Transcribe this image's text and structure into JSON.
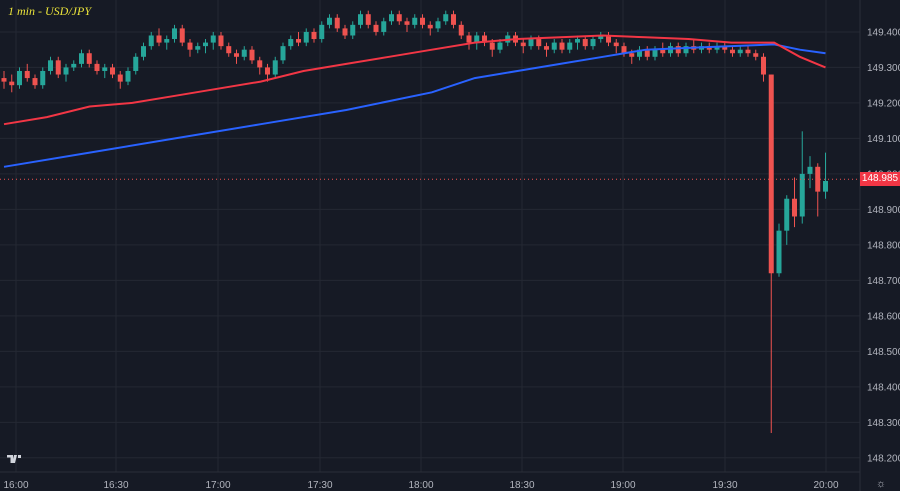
{
  "chart_data": {
    "type": "candlestick",
    "title": "1 min - USD/JPY",
    "y_ticks": [
      "149.400",
      "149.300",
      "149.200",
      "149.100",
      "149.000",
      "148.900",
      "148.800",
      "148.700",
      "148.600",
      "148.500",
      "148.400",
      "148.300",
      "148.200"
    ],
    "x_ticks": [
      "16:00",
      "16:30",
      "17:00",
      "17:30",
      "18:00",
      "18:30",
      "19:00",
      "19:30",
      "20:00"
    ],
    "ylim": [
      148.16,
      149.49
    ],
    "last_price": "148.985",
    "grid": true,
    "colors": {
      "up": "#26a69a",
      "down": "#ef5350",
      "ma_fast": "#f23645",
      "ma_slow": "#2962ff",
      "background": "#161a25",
      "grid": "#242833"
    },
    "ohlc": [
      [
        149.27,
        149.29,
        149.24,
        149.26
      ],
      [
        149.26,
        149.28,
        149.23,
        149.25
      ],
      [
        149.25,
        149.3,
        149.24,
        149.29
      ],
      [
        149.29,
        149.31,
        149.26,
        149.27
      ],
      [
        149.27,
        149.28,
        149.24,
        149.25
      ],
      [
        149.25,
        149.3,
        149.24,
        149.29
      ],
      [
        149.29,
        149.33,
        149.28,
        149.32
      ],
      [
        149.32,
        149.33,
        149.27,
        149.28
      ],
      [
        149.28,
        149.31,
        149.26,
        149.3
      ],
      [
        149.3,
        149.32,
        149.29,
        149.31
      ],
      [
        149.31,
        149.35,
        149.3,
        149.34
      ],
      [
        149.34,
        149.35,
        149.3,
        149.31
      ],
      [
        149.31,
        149.32,
        149.28,
        149.29
      ],
      [
        149.29,
        149.31,
        149.27,
        149.3
      ],
      [
        149.3,
        149.31,
        149.27,
        149.28
      ],
      [
        149.28,
        149.29,
        149.24,
        149.26
      ],
      [
        149.26,
        149.3,
        149.25,
        149.29
      ],
      [
        149.29,
        149.34,
        149.28,
        149.33
      ],
      [
        149.33,
        149.37,
        149.32,
        149.36
      ],
      [
        149.36,
        149.4,
        149.35,
        149.39
      ],
      [
        149.39,
        149.41,
        149.36,
        149.37
      ],
      [
        149.37,
        149.39,
        149.35,
        149.38
      ],
      [
        149.38,
        149.42,
        149.37,
        149.41
      ],
      [
        149.41,
        149.42,
        149.36,
        149.37
      ],
      [
        149.37,
        149.38,
        149.33,
        149.35
      ],
      [
        149.35,
        149.37,
        149.34,
        149.36
      ],
      [
        149.36,
        149.38,
        149.34,
        149.37
      ],
      [
        149.37,
        149.4,
        149.35,
        149.39
      ],
      [
        149.39,
        149.4,
        149.35,
        149.36
      ],
      [
        149.36,
        149.37,
        149.33,
        149.34
      ],
      [
        149.34,
        149.35,
        149.31,
        149.33
      ],
      [
        149.33,
        149.36,
        149.32,
        149.35
      ],
      [
        149.35,
        149.36,
        149.31,
        149.32
      ],
      [
        149.32,
        149.33,
        149.28,
        149.3
      ],
      [
        149.3,
        149.31,
        149.26,
        149.28
      ],
      [
        149.28,
        149.33,
        149.27,
        149.32
      ],
      [
        149.32,
        149.37,
        149.31,
        149.36
      ],
      [
        149.36,
        149.39,
        149.35,
        149.38
      ],
      [
        149.38,
        149.4,
        149.36,
        149.37
      ],
      [
        149.37,
        149.41,
        149.36,
        149.4
      ],
      [
        149.4,
        149.41,
        149.37,
        149.38
      ],
      [
        149.38,
        149.43,
        149.37,
        149.42
      ],
      [
        149.42,
        149.45,
        149.41,
        149.44
      ],
      [
        149.44,
        149.45,
        149.4,
        149.41
      ],
      [
        149.41,
        149.42,
        149.38,
        149.39
      ],
      [
        149.39,
        149.43,
        149.38,
        149.42
      ],
      [
        149.42,
        149.46,
        149.41,
        149.45
      ],
      [
        149.45,
        149.46,
        149.41,
        149.42
      ],
      [
        149.42,
        149.43,
        149.39,
        149.4
      ],
      [
        149.4,
        149.44,
        149.39,
        149.43
      ],
      [
        149.43,
        149.46,
        149.42,
        149.45
      ],
      [
        149.45,
        149.46,
        149.42,
        149.43
      ],
      [
        149.43,
        149.44,
        149.4,
        149.42
      ],
      [
        149.42,
        149.45,
        149.41,
        149.44
      ],
      [
        149.44,
        149.45,
        149.41,
        149.42
      ],
      [
        149.42,
        149.43,
        149.39,
        149.41
      ],
      [
        149.41,
        149.44,
        149.4,
        149.43
      ],
      [
        149.43,
        149.46,
        149.42,
        149.45
      ],
      [
        149.45,
        149.46,
        149.41,
        149.42
      ],
      [
        149.42,
        149.43,
        149.38,
        149.39
      ],
      [
        149.39,
        149.4,
        149.35,
        149.37
      ],
      [
        149.37,
        149.4,
        149.35,
        149.39
      ],
      [
        149.39,
        149.4,
        149.36,
        149.37
      ],
      [
        149.37,
        149.38,
        149.33,
        149.35
      ],
      [
        149.35,
        149.38,
        149.34,
        149.37
      ],
      [
        149.37,
        149.4,
        149.36,
        149.39
      ],
      [
        149.39,
        149.4,
        149.36,
        149.37
      ],
      [
        149.37,
        149.38,
        149.34,
        149.36
      ],
      [
        149.36,
        149.39,
        149.35,
        149.38
      ],
      [
        149.38,
        149.39,
        149.35,
        149.36
      ],
      [
        149.36,
        149.37,
        149.33,
        149.35
      ],
      [
        149.35,
        149.38,
        149.34,
        149.37
      ],
      [
        149.37,
        149.38,
        149.34,
        149.35
      ],
      [
        149.35,
        149.38,
        149.34,
        149.37
      ],
      [
        149.37,
        149.39,
        149.35,
        149.38
      ],
      [
        149.38,
        149.39,
        149.35,
        149.36
      ],
      [
        149.36,
        149.39,
        149.35,
        149.38
      ],
      [
        149.38,
        149.4,
        149.37,
        149.39
      ],
      [
        149.39,
        149.4,
        149.36,
        149.37
      ],
      [
        149.37,
        149.38,
        149.34,
        149.36
      ],
      [
        149.36,
        149.37,
        149.33,
        149.34
      ],
      [
        149.34,
        149.35,
        149.31,
        149.33
      ],
      [
        149.33,
        149.36,
        149.32,
        149.35
      ],
      [
        149.35,
        149.36,
        149.32,
        149.33
      ],
      [
        149.33,
        149.36,
        149.32,
        149.35
      ],
      [
        149.35,
        149.37,
        149.33,
        149.34
      ],
      [
        149.34,
        149.37,
        149.33,
        149.36
      ],
      [
        149.36,
        149.37,
        149.33,
        149.34
      ],
      [
        149.34,
        149.37,
        149.33,
        149.36
      ],
      [
        149.36,
        149.38,
        149.34,
        149.35
      ],
      [
        149.35,
        149.37,
        149.34,
        149.36
      ],
      [
        149.36,
        149.37,
        149.34,
        149.35
      ],
      [
        149.35,
        149.37,
        149.34,
        149.36
      ],
      [
        149.36,
        149.37,
        149.34,
        149.35
      ],
      [
        149.35,
        149.36,
        149.33,
        149.34
      ],
      [
        149.34,
        149.36,
        149.33,
        149.35
      ],
      [
        149.35,
        149.36,
        149.33,
        149.34
      ],
      [
        149.34,
        149.35,
        149.32,
        149.33
      ],
      [
        149.33,
        149.34,
        149.26,
        149.28
      ],
      [
        149.28,
        149.28,
        148.27,
        148.72
      ],
      [
        148.72,
        148.86,
        148.71,
        148.84
      ],
      [
        148.84,
        148.94,
        148.8,
        148.93
      ],
      [
        148.93,
        148.99,
        148.85,
        148.88
      ],
      [
        148.88,
        149.12,
        148.86,
        149.0
      ],
      [
        149.0,
        149.05,
        148.96,
        149.02
      ],
      [
        149.02,
        149.03,
        148.88,
        148.95
      ],
      [
        148.95,
        149.06,
        148.93,
        148.98
      ]
    ],
    "ma_fast": [
      [
        0,
        149.14
      ],
      [
        0.05,
        149.16
      ],
      [
        0.1,
        149.19
      ],
      [
        0.15,
        149.2
      ],
      [
        0.2,
        149.22
      ],
      [
        0.25,
        149.24
      ],
      [
        0.3,
        149.26
      ],
      [
        0.35,
        149.29
      ],
      [
        0.4,
        149.31
      ],
      [
        0.45,
        149.33
      ],
      [
        0.5,
        149.35
      ],
      [
        0.55,
        149.37
      ],
      [
        0.6,
        149.38
      ],
      [
        0.65,
        149.385
      ],
      [
        0.7,
        149.39
      ],
      [
        0.75,
        149.385
      ],
      [
        0.8,
        149.38
      ],
      [
        0.85,
        149.37
      ],
      [
        0.9,
        149.37
      ],
      [
        0.93,
        149.33
      ],
      [
        0.95,
        149.31
      ],
      [
        0.96,
        149.3
      ]
    ],
    "ma_slow": [
      [
        0,
        149.02
      ],
      [
        0.1,
        149.06
      ],
      [
        0.2,
        149.1
      ],
      [
        0.3,
        149.14
      ],
      [
        0.4,
        149.18
      ],
      [
        0.5,
        149.23
      ],
      [
        0.55,
        149.27
      ],
      [
        0.6,
        149.29
      ],
      [
        0.65,
        149.31
      ],
      [
        0.7,
        149.33
      ],
      [
        0.75,
        149.35
      ],
      [
        0.8,
        149.355
      ],
      [
        0.85,
        149.36
      ],
      [
        0.9,
        149.365
      ],
      [
        0.93,
        149.35
      ],
      [
        0.96,
        149.34
      ]
    ]
  }
}
